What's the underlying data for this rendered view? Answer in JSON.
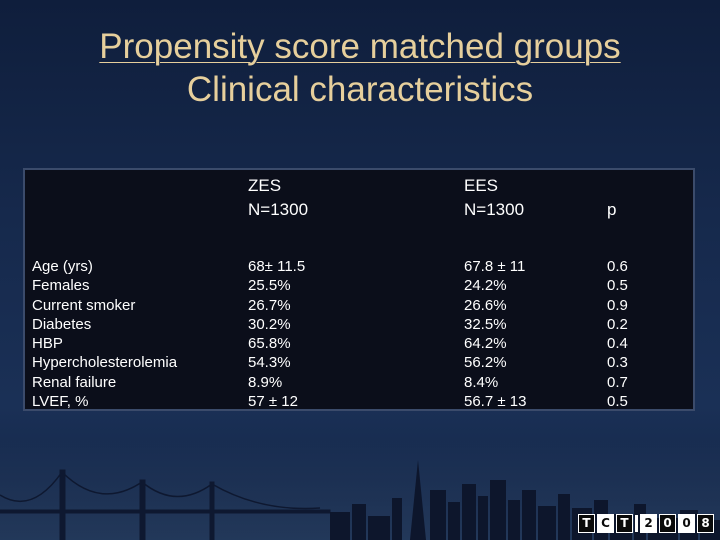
{
  "title": {
    "line1": "Propensity score matched groups",
    "line2": "Clinical characteristics"
  },
  "table": {
    "headers": {
      "zes": [
        "ZES",
        "N=1300"
      ],
      "ees": [
        "EES",
        "N=1300"
      ],
      "p": "p"
    },
    "labels": [
      "Age (yrs)",
      "Females",
      "Current smoker",
      "Diabetes",
      "HBP",
      "Hypercholesterolemia",
      "Renal failure",
      "LVEF, %"
    ],
    "zes": [
      "68± 11.5",
      "25.5%",
      "26.7%",
      "30.2%",
      "65.8%",
      "54.3%",
      "8.9%",
      "57 ± 12"
    ],
    "ees": [
      "67.8 ± 11",
      "24.2%",
      "26.6%",
      "32.5%",
      "64.2%",
      "56.2%",
      "8.4%",
      "56.7 ± 13"
    ],
    "p": [
      "0.6",
      "0.5",
      "0.9",
      "0.2",
      "0.4",
      "0.3",
      "0.7",
      "0.5"
    ]
  },
  "logo": {
    "letters": [
      "T",
      "C",
      "T",
      "2",
      "0",
      "0",
      "8"
    ]
  },
  "colors": {
    "title": "#e6cf9c",
    "table_bg": "#0b0e1a",
    "text": "#ffffff"
  }
}
